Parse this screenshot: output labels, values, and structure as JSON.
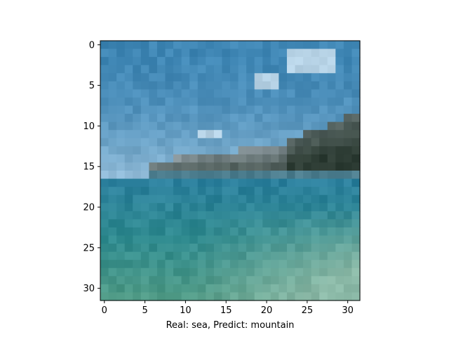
{
  "chart_data": {
    "type": "heatmap",
    "title": "",
    "xlabel": "Real: sea, Predict: mountain",
    "ylabel": "",
    "image_size": [
      32,
      32
    ],
    "xlim": [
      -0.5,
      31.5
    ],
    "ylim": [
      31.5,
      -0.5
    ],
    "x_ticks": [
      0,
      5,
      10,
      15,
      20,
      25,
      30
    ],
    "y_ticks": [
      0,
      5,
      10,
      15,
      20,
      25,
      30
    ],
    "x_tick_labels": [
      "0",
      "5",
      "10",
      "15",
      "20",
      "25",
      "30"
    ],
    "y_tick_labels": [
      "0",
      "5",
      "10",
      "15",
      "20",
      "25",
      "30"
    ],
    "grid": false,
    "colors": {
      "sky_top": "#3f86b4",
      "sky_horizon": "#8fb9d6",
      "cloud": "#d6e6f2",
      "mountain_dark": "#2e3d35",
      "mountain_mid": "#6d7a80",
      "mountain_light": "#9ba8b0",
      "sea_far": "#2b7f9c",
      "sea_mid": "#2f8a8e",
      "sea_near": "#4f9a86",
      "sea_foam": "#8ab8a6"
    }
  }
}
